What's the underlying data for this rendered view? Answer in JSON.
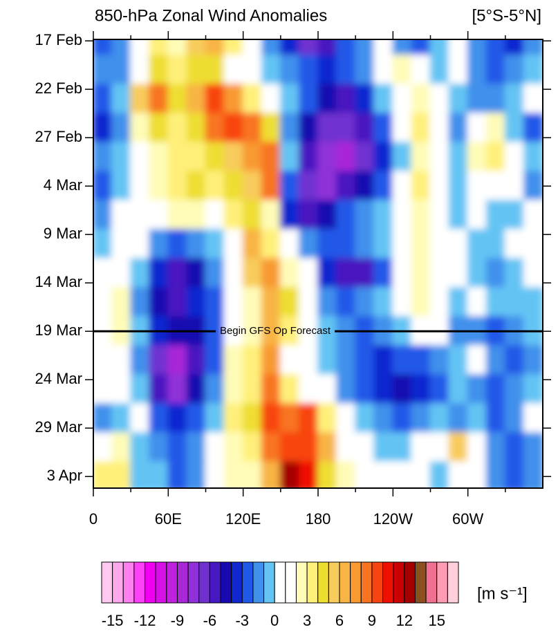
{
  "chart_data": {
    "type": "heatmap",
    "title": "850-hPa Zonal Wind Anomalies",
    "subtitle": "[5°S-5°N]",
    "colorbar_label": "[m s⁻¹]",
    "x": [
      7.5,
      22.5,
      37.5,
      52.5,
      67.5,
      82.5,
      97.5,
      112.5,
      127.5,
      142.5,
      157.5,
      172.5,
      187.5,
      202.5,
      217.5,
      232.5,
      247.5,
      262.5,
      277.5,
      292.5,
      307.5,
      322.5,
      337.5,
      352.5
    ],
    "y": [
      0,
      3,
      6,
      9,
      12,
      15,
      18,
      21,
      24,
      27,
      30,
      33,
      36,
      39,
      42,
      45
    ],
    "z": [
      [
        -3,
        -2,
        0,
        3,
        2,
        5,
        6,
        3,
        0,
        -2,
        -4,
        -7,
        -6,
        -3,
        -2,
        0,
        -2,
        -3,
        -1,
        1,
        -2,
        -3,
        -4,
        -2
      ],
      [
        -2,
        -2,
        0,
        4,
        3,
        4,
        4,
        1,
        0,
        -1,
        -2,
        -3,
        -4,
        -3,
        -2,
        0,
        2,
        1,
        -1,
        0,
        -2,
        -3,
        -2,
        -1
      ],
      [
        -3,
        -1,
        5,
        8,
        4,
        6,
        9,
        7,
        3,
        1,
        -1,
        -3,
        -5,
        -6,
        -4,
        -1,
        1,
        2,
        0,
        -1,
        -2,
        -2,
        -1,
        0
      ],
      [
        -4,
        -2,
        2,
        4,
        3,
        4,
        8,
        9,
        8,
        4,
        -2,
        -5,
        -7,
        -7,
        -6,
        -3,
        0,
        3,
        1,
        -2,
        1,
        2,
        -1,
        -3
      ],
      [
        -2,
        -1,
        1,
        2,
        3,
        3,
        4,
        5,
        7,
        8,
        -1,
        -6,
        -8,
        -9,
        -7,
        -4,
        -1,
        2,
        1,
        -1,
        2,
        3,
        1,
        -1
      ],
      [
        -3,
        -1,
        0,
        2,
        3,
        4,
        3,
        4,
        5,
        8,
        -3,
        -7,
        -8,
        -6,
        -5,
        -3,
        0,
        3,
        1,
        -1,
        0,
        1,
        0,
        -2
      ],
      [
        -2,
        0,
        0,
        1,
        2,
        2,
        1,
        3,
        4,
        2,
        -4,
        -6,
        -5,
        -3,
        -2,
        -1,
        0,
        2,
        1,
        -1,
        0,
        -1,
        -1,
        0
      ],
      [
        -1,
        1,
        0,
        -2,
        -3,
        -2,
        -1,
        1,
        6,
        3,
        0,
        -2,
        -3,
        -3,
        -2,
        -1,
        1,
        2,
        0,
        1,
        -1,
        -1,
        0,
        1
      ],
      [
        0,
        1,
        -1,
        -4,
        -6,
        -5,
        -2,
        0,
        5,
        7,
        2,
        0,
        -4,
        -6,
        -6,
        -3,
        0,
        2,
        1,
        0,
        -1,
        -2,
        -1,
        0
      ],
      [
        1,
        2,
        -2,
        -5,
        -6,
        -4,
        -3,
        1,
        2,
        6,
        4,
        1,
        -2,
        -3,
        -2,
        -1,
        1,
        2,
        0,
        -1,
        0,
        -1,
        -1,
        -1
      ],
      [
        1,
        2,
        -1,
        -4,
        -5,
        -5,
        -3,
        1,
        2,
        6,
        3,
        0,
        -1,
        -2,
        -3,
        -2,
        -1,
        1,
        0,
        -2,
        -2,
        -3,
        -2,
        -1
      ],
      [
        0,
        1,
        -2,
        -7,
        -9,
        -6,
        -3,
        2,
        3,
        7,
        1,
        0,
        -1,
        -2,
        -3,
        -4,
        -3,
        -3,
        -2,
        -1,
        0,
        -2,
        -3,
        -2
      ],
      [
        1,
        0,
        -1,
        -6,
        -8,
        -5,
        -2,
        2,
        3,
        8,
        3,
        1,
        0,
        -2,
        -3,
        -4,
        -5,
        -4,
        -3,
        -1,
        -2,
        -3,
        -2,
        -1
      ],
      [
        -2,
        -1,
        0,
        -3,
        -4,
        -3,
        -1,
        3,
        4,
        9,
        8,
        9,
        3,
        0,
        -1,
        -2,
        -3,
        -2,
        -1,
        -2,
        -1,
        -3,
        -2,
        0
      ],
      [
        1,
        2,
        -1,
        -2,
        -3,
        -2,
        0,
        2,
        3,
        8,
        9,
        9,
        6,
        1,
        0,
        -1,
        -1,
        0,
        1,
        5,
        1,
        -2,
        -3,
        -2
      ],
      [
        3,
        3,
        -1,
        -1,
        -3,
        -2,
        0,
        2,
        2,
        6,
        12,
        10,
        4,
        2,
        1,
        1,
        1,
        0,
        -1,
        1,
        0,
        -2,
        -3,
        -2
      ]
    ],
    "xlim": [
      0,
      360
    ],
    "xticks": [
      0,
      {
        "value": 60,
        "label": "60E"
      },
      {
        "value": 120,
        "label": "120E"
      },
      180,
      {
        "value": 240,
        "label": "120W"
      },
      {
        "value": 300,
        "label": "60W"
      }
    ],
    "xminor_ticks": [
      30,
      90,
      150,
      210,
      270,
      330
    ],
    "ylim": [
      -0.15,
      46.2
    ],
    "y_inverted": true,
    "yticks": [
      {
        "value": 0,
        "label": "17 Feb"
      },
      {
        "value": 5,
        "label": "22 Feb"
      },
      {
        "value": 10,
        "label": "27 Feb"
      },
      {
        "value": 15,
        "label": "4 Mar"
      },
      {
        "value": 20,
        "label": "9 Mar"
      },
      {
        "value": 25,
        "label": "14 Mar"
      },
      {
        "value": 30,
        "label": "19 Mar"
      },
      {
        "value": 35,
        "label": "24 Mar"
      },
      {
        "value": 40,
        "label": "29 Mar"
      },
      {
        "value": 45,
        "label": "3 Apr"
      }
    ],
    "annotation": {
      "text": "Begin GFS Op Forecast",
      "y": 30
    },
    "levels": [
      -15,
      -14,
      -13,
      -12,
      -11,
      -10,
      -9,
      -8,
      -7,
      -6,
      -5,
      -4,
      -3,
      -2,
      -1,
      0,
      1,
      2,
      3,
      4,
      5,
      6,
      7,
      8,
      9,
      10,
      11,
      12,
      13,
      14,
      15,
      16
    ],
    "colors": [
      "#ffc8f0",
      "#ffa8ec",
      "#ff80ee",
      "#ff40f8",
      "#f000f0",
      "#d810e8",
      "#c020e0",
      "#a828d8",
      "#9030d8",
      "#7030d0",
      "#4818c0",
      "#1808b0",
      "#1028d0",
      "#2058e8",
      "#4090ec",
      "#64c4f4",
      "#ffffff",
      "#ffffff",
      "#fffcb8",
      "#fff07a",
      "#eede30",
      "#f8cc5c",
      "#f8b444",
      "#f89a30",
      "#f87420",
      "#f84410",
      "#ee1000",
      "#cc0000",
      "#a40000",
      "#8b5020",
      "#f07090",
      "#ff9cb4",
      "#ffd0dc"
    ],
    "colorbar_ticks": [
      -15,
      -12,
      -9,
      -6,
      -3,
      0,
      3,
      6,
      9,
      12,
      15
    ]
  }
}
